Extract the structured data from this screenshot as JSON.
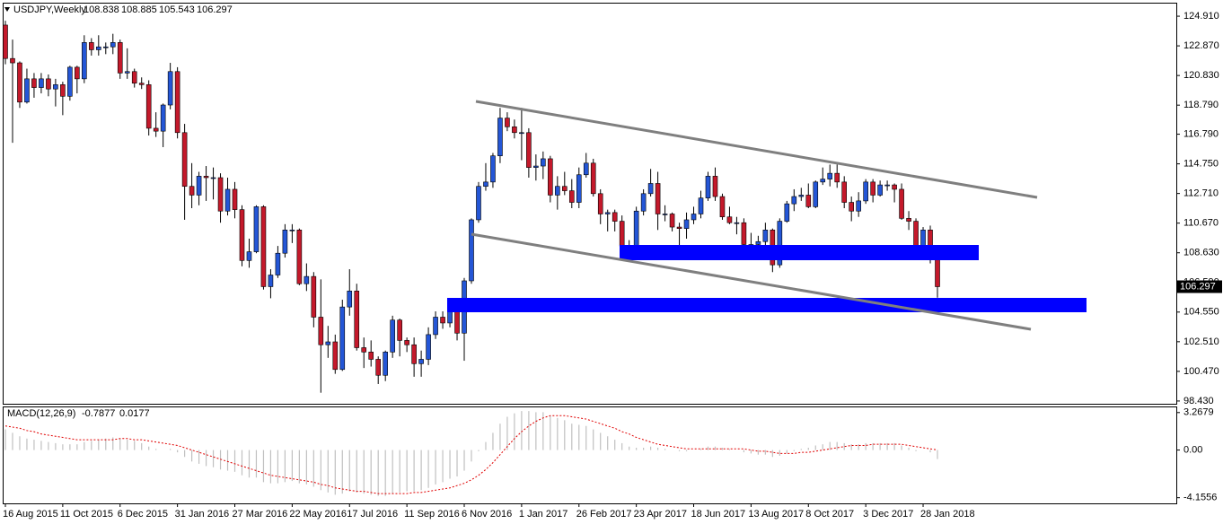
{
  "chart_data": [
    {
      "type": "candlestick",
      "title": "USDJPY,Weekly",
      "categories": [
        "16 Aug 2015",
        null,
        null,
        null,
        null,
        null,
        null,
        null,
        "11 Oct 2015",
        null,
        null,
        null,
        null,
        null,
        null,
        null,
        "6 Dec 2015",
        null,
        null,
        null,
        null,
        null,
        null,
        null,
        "31 Jan 2016",
        null,
        null,
        null,
        null,
        null,
        null,
        null,
        "27 Mar 2016",
        null,
        null,
        null,
        null,
        null,
        null,
        null,
        "22 May 2016",
        null,
        null,
        null,
        null,
        null,
        null,
        null,
        "17 Jul 2016",
        null,
        null,
        null,
        null,
        null,
        null,
        null,
        "11 Sep 2016",
        null,
        null,
        null,
        null,
        null,
        null,
        null,
        "6 Nov 2016",
        null,
        null,
        null,
        null,
        null,
        null,
        null,
        "1 Jan 2017",
        null,
        null,
        null,
        null,
        null,
        null,
        null,
        "26 Feb 2017",
        null,
        null,
        null,
        null,
        null,
        null,
        null,
        "23 Apr 2017",
        null,
        null,
        null,
        null,
        null,
        null,
        null,
        "18 Jun 2017",
        null,
        null,
        null,
        null,
        null,
        null,
        null,
        "13 Aug 2017",
        null,
        null,
        null,
        null,
        null,
        null,
        null,
        "8 Oct 2017",
        null,
        null,
        null,
        null,
        null,
        null,
        null,
        "3 Dec 2017",
        null,
        null,
        null,
        null,
        null,
        null,
        null,
        "28 Jan 2018",
        null,
        null
      ],
      "open": [
        124.3,
        122.0,
        121.7,
        119.0,
        120.6,
        120.0,
        120.6,
        119.9,
        120.2,
        119.4,
        121.4,
        120.6,
        123.1,
        122.6,
        122.8,
        122.8,
        123.1,
        121.0,
        121.1,
        120.3,
        120.2,
        117.2,
        117.0,
        118.8,
        121.1,
        116.9,
        113.2,
        112.6,
        113.9,
        113.8,
        113.8,
        111.5,
        113.0,
        111.6,
        108.1,
        108.7,
        111.8,
        106.3,
        107.1,
        108.6,
        110.2,
        110.2,
        106.5,
        107.0,
        104.2,
        102.3,
        102.5,
        100.6,
        104.9,
        106.0,
        102.1,
        101.8,
        101.3,
        100.2,
        101.8,
        104.0,
        102.6,
        102.3,
        101.0,
        101.3,
        103.0,
        104.2,
        103.8,
        104.7,
        103.1,
        106.7,
        110.9,
        113.2,
        113.5,
        115.3,
        117.9,
        117.3,
        116.9,
        116.9,
        114.5,
        114.6,
        115.1,
        112.6,
        113.2,
        112.9,
        112.1,
        114.0,
        114.8,
        112.7,
        111.3,
        111.4,
        110.8,
        109.1,
        109.0,
        111.5,
        112.7,
        113.4,
        111.3,
        111.3,
        110.4,
        110.3,
        110.9,
        111.3,
        112.4,
        113.9,
        112.5,
        111.1,
        110.7,
        110.7,
        109.2,
        109.2,
        109.4,
        110.2,
        107.8,
        110.8,
        112.0,
        112.5,
        112.6,
        111.8,
        113.5,
        113.7,
        114.1,
        113.5,
        112.1,
        111.5,
        112.2,
        113.5,
        112.6,
        113.3,
        113.3,
        113.0,
        111.0,
        110.8,
        108.6,
        110.2,
        108.838
      ],
      "high": [
        124.6,
        123.3,
        121.8,
        121.3,
        121.0,
        121.0,
        120.9,
        120.6,
        120.4,
        121.5,
        121.5,
        123.6,
        123.4,
        123.6,
        123.1,
        123.7,
        123.3,
        122.7,
        121.3,
        120.7,
        120.5,
        118.3,
        118.9,
        121.7,
        121.4,
        117.5,
        114.8,
        114.2,
        114.6,
        114.5,
        114.1,
        113.8,
        113.5,
        111.9,
        109.6,
        111.9,
        111.9,
        107.5,
        109.1,
        110.6,
        110.6,
        110.3,
        107.9,
        107.3,
        106.8,
        103.6,
        103.0,
        105.4,
        107.5,
        106.5,
        102.8,
        102.6,
        101.5,
        101.9,
        104.3,
        104.1,
        102.8,
        102.8,
        101.9,
        103.5,
        104.6,
        104.6,
        105.3,
        105.5,
        106.9,
        111.0,
        113.5,
        114.8,
        115.5,
        118.6,
        118.3,
        117.8,
        118.6,
        117.2,
        115.4,
        115.6,
        115.3,
        113.9,
        114.2,
        113.7,
        114.5,
        115.5,
        115.1,
        113.0,
        111.6,
        111.6,
        111.2,
        109.5,
        111.8,
        113.0,
        114.4,
        114.2,
        111.9,
        111.4,
        110.7,
        111.4,
        111.8,
        112.9,
        114.2,
        114.5,
        112.7,
        111.8,
        111.1,
        111.0,
        110.0,
        109.8,
        110.7,
        110.3,
        111.0,
        112.2,
        113.0,
        113.1,
        113.4,
        113.6,
        114.5,
        114.7,
        114.7,
        113.9,
        112.5,
        112.8,
        113.7,
        113.7,
        113.6,
        113.6,
        113.4,
        113.4,
        111.5,
        111.0,
        110.4,
        110.5,
        108.885
      ],
      "low": [
        121.6,
        116.2,
        118.6,
        118.9,
        119.3,
        119.6,
        119.4,
        118.7,
        118.1,
        119.1,
        119.6,
        120.3,
        122.2,
        122.2,
        122.3,
        122.3,
        120.6,
        120.6,
        120.0,
        119.9,
        116.7,
        116.6,
        115.9,
        118.5,
        116.5,
        110.9,
        111.7,
        111.9,
        112.2,
        112.3,
        110.7,
        111.2,
        111.0,
        107.7,
        107.6,
        108.6,
        106.1,
        105.5,
        106.9,
        108.3,
        109.3,
        106.4,
        106.0,
        103.5,
        99.0,
        101.4,
        100.3,
        100.5,
        104.3,
        101.9,
        100.7,
        100.8,
        99.6,
        99.8,
        101.4,
        101.5,
        101.8,
        100.1,
        100.1,
        100.9,
        102.7,
        103.4,
        103.5,
        102.6,
        101.2,
        106.5,
        110.7,
        112.9,
        113.1,
        114.8,
        117.0,
        116.5,
        115.0,
        113.8,
        113.6,
        113.7,
        112.1,
        111.6,
        112.6,
        111.7,
        111.7,
        113.8,
        112.5,
        110.6,
        110.1,
        110.1,
        108.7,
        108.1,
        108.9,
        111.2,
        112.5,
        110.2,
        110.8,
        110.1,
        109.1,
        109.6,
        110.6,
        111.0,
        112.2,
        112.2,
        110.9,
        110.6,
        109.9,
        109.1,
        108.6,
        108.6,
        108.3,
        107.3,
        107.6,
        110.7,
        111.5,
        112.2,
        111.7,
        111.7,
        113.3,
        113.2,
        113.1,
        111.7,
        110.8,
        111.1,
        112.0,
        112.1,
        112.5,
        112.9,
        112.1,
        110.9,
        110.2,
        108.5,
        108.3,
        107.9,
        105.543
      ],
      "close": [
        122.0,
        121.7,
        119.0,
        120.6,
        120.0,
        120.6,
        119.9,
        120.2,
        119.4,
        121.4,
        120.6,
        123.1,
        122.6,
        122.8,
        122.8,
        123.1,
        121.0,
        121.1,
        120.3,
        120.2,
        117.2,
        117.0,
        118.8,
        121.1,
        116.9,
        113.2,
        112.6,
        113.9,
        113.8,
        113.8,
        111.5,
        113.0,
        111.6,
        108.1,
        108.7,
        111.8,
        106.3,
        107.1,
        108.6,
        110.2,
        110.2,
        106.5,
        107.0,
        104.2,
        102.3,
        102.5,
        100.6,
        104.9,
        106.0,
        102.1,
        101.8,
        101.3,
        100.2,
        101.8,
        104.0,
        102.6,
        102.3,
        101.0,
        101.3,
        103.0,
        104.2,
        103.8,
        104.7,
        103.1,
        106.7,
        110.9,
        113.2,
        113.5,
        115.3,
        117.9,
        117.3,
        116.9,
        116.9,
        114.5,
        114.6,
        115.1,
        112.6,
        113.2,
        112.9,
        112.1,
        114.0,
        114.8,
        112.7,
        111.3,
        111.4,
        110.8,
        109.1,
        109.0,
        111.5,
        112.7,
        113.4,
        111.3,
        111.3,
        110.4,
        110.3,
        110.9,
        111.3,
        112.4,
        113.9,
        112.5,
        111.1,
        110.7,
        110.7,
        109.2,
        109.2,
        109.4,
        110.2,
        107.8,
        110.8,
        112.0,
        112.5,
        112.6,
        111.8,
        113.5,
        113.7,
        114.1,
        113.5,
        112.1,
        111.5,
        112.2,
        113.5,
        112.6,
        113.3,
        113.3,
        113.0,
        111.0,
        110.8,
        108.6,
        110.2,
        108.8,
        106.297
      ],
      "up_color": "#2456d6",
      "down_color": "#c4192b",
      "wick_color": "#000000",
      "ylim": [
        98.24,
        125.84
      ],
      "yticks": [
        {
          "value": 124.91,
          "label": "124.910"
        },
        {
          "value": 122.87,
          "label": "122.870"
        },
        {
          "value": 120.83,
          "label": "120.830"
        },
        {
          "value": 118.79,
          "label": "118.790"
        },
        {
          "value": 116.79,
          "label": "116.790"
        },
        {
          "value": 114.75,
          "label": "114.750"
        },
        {
          "value": 112.71,
          "label": "112.710"
        },
        {
          "value": 110.67,
          "label": "110.670"
        },
        {
          "value": 108.63,
          "label": "108.630"
        },
        {
          "value": 106.59,
          "label": "106.590"
        },
        {
          "value": 104.55,
          "label": "104.550"
        },
        {
          "value": 102.51,
          "label": "102.510"
        },
        {
          "value": 100.47,
          "label": "100.470"
        },
        {
          "value": 98.43,
          "label": "98.430"
        }
      ],
      "grid": false
    },
    {
      "type": "macd",
      "title": "MACD(12,26,9)",
      "series": [
        {
          "kind": "bar",
          "color": "#c0c0c0",
          "values": [
            1.8,
            1.5,
            1.2,
            1.0,
            0.9,
            0.8,
            0.7,
            0.6,
            0.5,
            0.5,
            0.5,
            0.7,
            0.8,
            0.9,
            1.0,
            1.1,
            1.0,
            0.9,
            0.8,
            0.6,
            0.3,
            0.1,
            0.0,
            0.1,
            -0.2,
            -0.6,
            -1.0,
            -1.2,
            -1.4,
            -1.5,
            -1.7,
            -1.8,
            -1.9,
            -2.2,
            -2.4,
            -2.4,
            -2.8,
            -2.9,
            -2.9,
            -2.8,
            -2.7,
            -2.9,
            -3.0,
            -3.2,
            -3.5,
            -3.7,
            -3.9,
            -3.8,
            -3.6,
            -3.7,
            -3.8,
            -3.9,
            -4.0,
            -4.0,
            -3.8,
            -3.7,
            -3.6,
            -3.6,
            -3.5,
            -3.3,
            -3.0,
            -2.8,
            -2.5,
            -2.3,
            -1.8,
            -1.0,
            -0.1,
            0.7,
            1.5,
            2.3,
            2.9,
            3.2,
            3.4,
            3.4,
            3.3,
            3.3,
            3.0,
            2.8,
            2.6,
            2.3,
            2.2,
            2.1,
            1.8,
            1.5,
            1.2,
            0.9,
            0.6,
            0.3,
            0.2,
            0.2,
            0.3,
            0.2,
            0.1,
            0.0,
            -0.1,
            -0.1,
            0.0,
            0.1,
            0.3,
            0.3,
            0.2,
            0.1,
            0.0,
            -0.2,
            -0.3,
            -0.4,
            -0.4,
            -0.6,
            -0.5,
            -0.3,
            -0.1,
            0.1,
            0.2,
            0.4,
            0.5,
            0.7,
            0.7,
            0.6,
            0.5,
            0.5,
            0.6,
            0.6,
            0.6,
            0.6,
            0.6,
            0.4,
            0.2,
            -0.1,
            0.0,
            -0.2,
            -0.7877
          ]
        },
        {
          "kind": "line",
          "color": "#e00000",
          "dash": true,
          "values": [
            2.1,
            2.0,
            1.9,
            1.7,
            1.6,
            1.4,
            1.3,
            1.2,
            1.1,
            1.0,
            0.9,
            0.9,
            0.9,
            0.9,
            0.9,
            0.9,
            1.0,
            1.0,
            0.9,
            0.9,
            0.8,
            0.7,
            0.6,
            0.5,
            0.4,
            0.2,
            0.0,
            -0.2,
            -0.4,
            -0.6,
            -0.8,
            -1.0,
            -1.2,
            -1.4,
            -1.6,
            -1.8,
            -2.0,
            -2.2,
            -2.3,
            -2.4,
            -2.5,
            -2.6,
            -2.7,
            -2.8,
            -3.0,
            -3.1,
            -3.3,
            -3.4,
            -3.5,
            -3.6,
            -3.6,
            -3.7,
            -3.8,
            -3.8,
            -3.8,
            -3.8,
            -3.8,
            -3.7,
            -3.7,
            -3.6,
            -3.5,
            -3.4,
            -3.3,
            -3.1,
            -2.9,
            -2.6,
            -2.2,
            -1.7,
            -1.1,
            -0.4,
            0.3,
            1.0,
            1.6,
            2.1,
            2.5,
            2.8,
            3.0,
            3.0,
            3.0,
            2.9,
            2.8,
            2.7,
            2.5,
            2.3,
            2.1,
            1.9,
            1.6,
            1.4,
            1.1,
            0.9,
            0.7,
            0.5,
            0.4,
            0.3,
            0.2,
            0.1,
            0.1,
            0.1,
            0.1,
            0.1,
            0.1,
            0.1,
            0.1,
            0.1,
            0.0,
            -0.1,
            -0.1,
            -0.2,
            -0.3,
            -0.3,
            -0.3,
            -0.2,
            -0.2,
            -0.1,
            0.0,
            0.1,
            0.2,
            0.3,
            0.4,
            0.4,
            0.4,
            0.5,
            0.5,
            0.5,
            0.5,
            0.5,
            0.4,
            0.3,
            0.2,
            0.1,
            0.0177
          ]
        }
      ],
      "ylim": [
        -4.65,
        3.8
      ],
      "yticks": [
        3.2679,
        {
          "value": 0,
          "label": "0.00"
        },
        -4.1556
      ],
      "grid": false
    }
  ]
}
